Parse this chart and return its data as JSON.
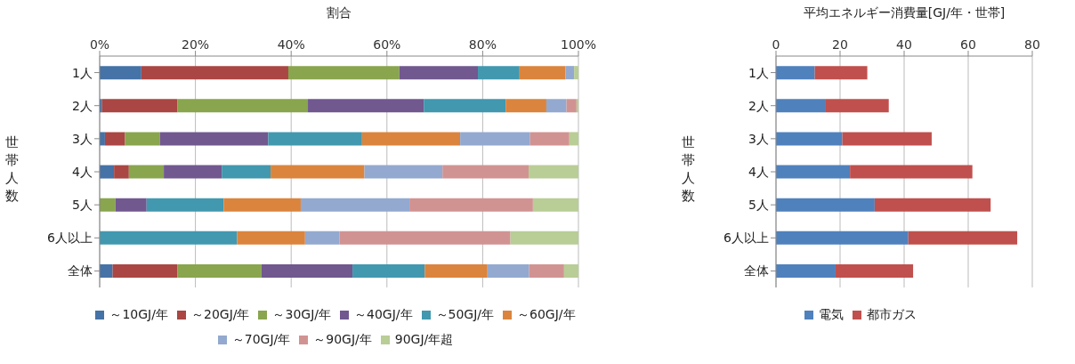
{
  "chart_data": [
    {
      "type": "bar",
      "orientation": "horizontal",
      "stacked": true,
      "xlabel": "割合",
      "ylabel": "世帯人数",
      "categories": [
        "1人",
        "2人",
        "3人",
        "4人",
        "5人",
        "6人以上",
        "全体"
      ],
      "series": [
        {
          "name": "～10GJ/年",
          "color": "#4572a7",
          "values": [
            8.7,
            0.5,
            1.1,
            3.0,
            0,
            0,
            2.7
          ]
        },
        {
          "name": "～20GJ/年",
          "color": "#aa4643",
          "values": [
            30.7,
            15.7,
            4.2,
            3.1,
            0,
            0,
            13.5
          ]
        },
        {
          "name": "～30GJ/年",
          "color": "#89a54e",
          "values": [
            23.2,
            27.3,
            7.3,
            7.3,
            3.3,
            0,
            17.6
          ]
        },
        {
          "name": "～40GJ/年",
          "color": "#71588f",
          "values": [
            16.4,
            24.2,
            22.6,
            12.1,
            6.5,
            0,
            19.0
          ]
        },
        {
          "name": "～50GJ/年",
          "color": "#4198af",
          "values": [
            8.7,
            17.1,
            19.6,
            10.2,
            16.1,
            28.7,
            15.1
          ]
        },
        {
          "name": "～60GJ/年",
          "color": "#db843d",
          "values": [
            9.6,
            8.5,
            20.5,
            19.6,
            16.1,
            14.2,
            13.1
          ]
        },
        {
          "name": "～70GJ/年",
          "color": "#93a9cf",
          "values": [
            1.8,
            4.2,
            14.6,
            16.3,
            22.7,
            7.2,
            8.7
          ]
        },
        {
          "name": "～90GJ/年",
          "color": "#d19392",
          "values": [
            0,
            2.1,
            8.2,
            18.0,
            25.8,
            35.7,
            7.3
          ]
        },
        {
          "name": "90GJ/年超",
          "color": "#b9cd96",
          "values": [
            0.9,
            0.4,
            1.9,
            10.4,
            9.5,
            14.2,
            3.0
          ]
        }
      ],
      "xlim": [
        0,
        100
      ],
      "xticks": [
        {
          "value": 0,
          "label": "0%"
        },
        {
          "value": 20,
          "label": "20%"
        },
        {
          "value": 40,
          "label": "40%"
        },
        {
          "value": 60,
          "label": "60%"
        },
        {
          "value": 80,
          "label": "80%"
        },
        {
          "value": 100,
          "label": "100%"
        }
      ],
      "grid": "x",
      "legend": "bottom"
    },
    {
      "type": "bar",
      "orientation": "horizontal",
      "stacked": true,
      "xlabel": "平均エネルギー消費量[GJ/年・世帯]",
      "ylabel": "世帯人数",
      "categories": [
        "1人",
        "2人",
        "3人",
        "4人",
        "5人",
        "6人以上",
        "全体"
      ],
      "series": [
        {
          "name": "電気",
          "color": "#4f81bd",
          "values": [
            12.1,
            15.3,
            20.7,
            23.1,
            30.8,
            41.3,
            18.6
          ]
        },
        {
          "name": "都市ガス",
          "color": "#c0504d",
          "values": [
            16.4,
            19.9,
            27.9,
            38.2,
            36.2,
            34.0,
            24.2
          ]
        }
      ],
      "xlim": [
        0,
        80
      ],
      "xticks": [
        0,
        20,
        40,
        60,
        80
      ],
      "grid": "x",
      "legend": "bottom"
    }
  ]
}
